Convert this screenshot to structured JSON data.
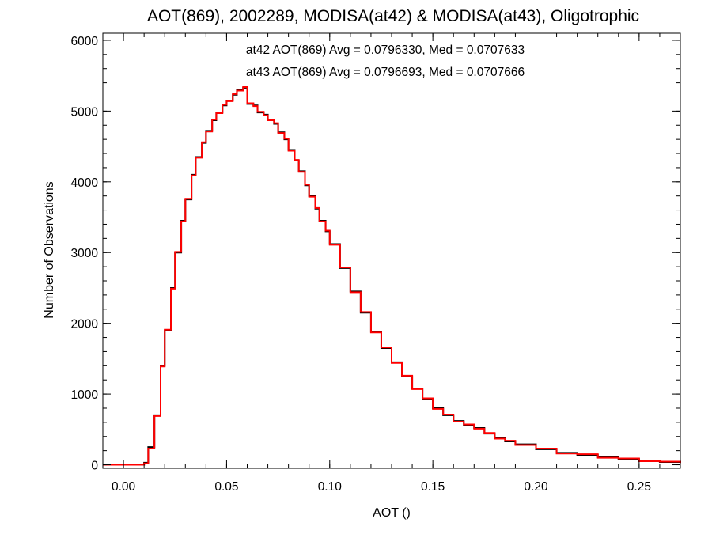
{
  "chart_data": {
    "type": "line",
    "title": "AOT(869), 2002289, MODISA(at42) & MODISA(at43), Oligotrophic",
    "xlabel": "AOT ()",
    "ylabel": "Number of Observations",
    "xlim": [
      -0.01,
      0.27
    ],
    "ylim": [
      -50,
      6100
    ],
    "xticks": [
      0.0,
      0.05,
      0.1,
      0.15,
      0.2,
      0.25
    ],
    "xtick_labels": [
      "0.00",
      "0.05",
      "0.10",
      "0.15",
      "0.20",
      "0.25"
    ],
    "yticks": [
      0,
      1000,
      2000,
      3000,
      4000,
      5000,
      6000
    ],
    "ytick_labels": [
      "0",
      "1000",
      "2000",
      "3000",
      "4000",
      "5000",
      "6000"
    ],
    "x_minor_step": 0.01,
    "y_minor_step": 200,
    "grid": false,
    "annotations": [
      {
        "text": "at42 AOT(869) Avg = 0.0796330, Med = 0.0707633",
        "color": "#000000"
      },
      {
        "text": "at43 AOT(869) Avg = 0.0796693, Med = 0.0707666",
        "color": "#ff0000"
      }
    ],
    "x": [
      -0.01,
      0.005,
      0.008,
      0.01,
      0.012,
      0.015,
      0.018,
      0.02,
      0.023,
      0.025,
      0.028,
      0.03,
      0.033,
      0.035,
      0.038,
      0.04,
      0.043,
      0.045,
      0.048,
      0.05,
      0.053,
      0.055,
      0.058,
      0.06,
      0.063,
      0.065,
      0.068,
      0.07,
      0.073,
      0.075,
      0.078,
      0.08,
      0.083,
      0.085,
      0.088,
      0.09,
      0.093,
      0.095,
      0.098,
      0.1,
      0.105,
      0.11,
      0.115,
      0.12,
      0.125,
      0.13,
      0.135,
      0.14,
      0.145,
      0.15,
      0.155,
      0.16,
      0.165,
      0.17,
      0.175,
      0.18,
      0.185,
      0.19,
      0.2,
      0.21,
      0.22,
      0.23,
      0.24,
      0.25,
      0.26,
      0.27
    ],
    "series": [
      {
        "name": "at42",
        "color": "#000000",
        "values": [
          0,
          0,
          0,
          30,
          250,
          700,
          1400,
          1900,
          2500,
          3000,
          3450,
          3750,
          4100,
          4350,
          4550,
          4720,
          4870,
          4980,
          5080,
          5150,
          5230,
          5300,
          5330,
          5100,
          5080,
          4980,
          4950,
          4880,
          4820,
          4700,
          4600,
          4450,
          4300,
          4150,
          3950,
          3800,
          3620,
          3450,
          3300,
          3120,
          2780,
          2450,
          2150,
          1880,
          1650,
          1450,
          1250,
          1080,
          930,
          800,
          700,
          620,
          560,
          520,
          440,
          380,
          330,
          290,
          220,
          170,
          140,
          110,
          80,
          60,
          40,
          30
        ]
      },
      {
        "name": "at43",
        "color": "#ff0000",
        "values": [
          0,
          0,
          0,
          20,
          230,
          690,
          1390,
          1910,
          2490,
          3010,
          3440,
          3760,
          4090,
          4340,
          4560,
          4710,
          4880,
          4970,
          5090,
          5140,
          5240,
          5290,
          5340,
          5110,
          5070,
          4990,
          4940,
          4870,
          4830,
          4690,
          4610,
          4440,
          4310,
          4140,
          3960,
          3790,
          3630,
          3440,
          3310,
          3110,
          2790,
          2440,
          2160,
          1870,
          1660,
          1440,
          1260,
          1070,
          940,
          790,
          710,
          610,
          570,
          510,
          450,
          370,
          340,
          280,
          230,
          160,
          150,
          100,
          90,
          50,
          45,
          25
        ]
      }
    ]
  }
}
